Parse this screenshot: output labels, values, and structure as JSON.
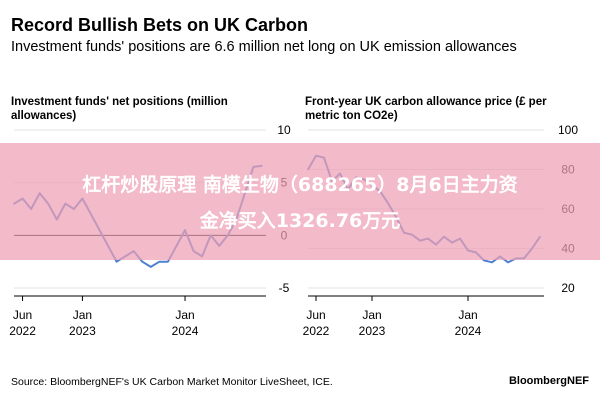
{
  "header": {
    "title": "Record Bullish Bets on UK Carbon",
    "subtitle": "Investment funds' positions are 6.6 million net long on UK emission allowances"
  },
  "colors": {
    "line": "#4f80cf",
    "zero_line": "#000000",
    "grid": "#e3e3e3",
    "banner": "#eea0b4"
  },
  "chart_data": [
    {
      "type": "line",
      "title": "Investment funds' net positions (million allowances)",
      "ylim": [
        -5,
        10
      ],
      "yticks": [
        "10",
        "5",
        "0",
        "-5"
      ],
      "ytick_values": [
        10,
        5,
        0,
        -5
      ],
      "xticks": [
        {
          "value": "2022-06",
          "label": "Jun",
          "sublabel": "2022"
        },
        {
          "value": "2023-01",
          "label": "Jan",
          "sublabel": "2023"
        },
        {
          "value": "2024-01",
          "label": "Jan",
          "sublabel": "2024"
        }
      ],
      "xlim": [
        "2022-05",
        "2024-10"
      ],
      "zero_line": true,
      "series": [
        {
          "x": [
            "2022-05",
            "2022-06",
            "2022-07",
            "2022-08",
            "2022-09",
            "2022-10",
            "2022-11",
            "2022-12",
            "2023-01",
            "2023-02",
            "2023-03",
            "2023-04",
            "2023-05",
            "2023-06",
            "2023-07",
            "2023-08",
            "2023-09",
            "2023-10",
            "2023-11",
            "2023-12",
            "2024-01",
            "2024-02",
            "2024-03",
            "2024-04",
            "2024-05",
            "2024-06",
            "2024-07",
            "2024-08",
            "2024-09",
            "2024-10"
          ],
          "values": [
            3.0,
            3.5,
            2.5,
            4.0,
            3.0,
            1.5,
            3.0,
            2.5,
            3.5,
            2.0,
            0.5,
            -1.0,
            -2.5,
            -2.0,
            -1.5,
            -2.5,
            -3.0,
            -2.5,
            -2.5,
            -1.0,
            0.5,
            -1.5,
            -2.0,
            0.0,
            -1.0,
            0.0,
            1.5,
            4.0,
            6.5,
            6.6
          ]
        }
      ]
    },
    {
      "type": "line",
      "title": "Front-year UK carbon allowance price (£ per metric ton CO2e)",
      "ylim": [
        20,
        100
      ],
      "yticks": [
        "100",
        "80",
        "60",
        "40",
        "20"
      ],
      "ytick_values": [
        100,
        80,
        60,
        40,
        20
      ],
      "xticks": [
        {
          "value": "2022-06",
          "label": "Jun",
          "sublabel": "2022"
        },
        {
          "value": "2023-01",
          "label": "Jan",
          "sublabel": "2023"
        },
        {
          "value": "2024-01",
          "label": "Jan",
          "sublabel": "2024"
        }
      ],
      "xlim": [
        "2022-05",
        "2024-10"
      ],
      "zero_line": false,
      "series": [
        {
          "x": [
            "2022-05",
            "2022-06",
            "2022-07",
            "2022-08",
            "2022-09",
            "2022-10",
            "2022-11",
            "2022-12",
            "2023-01",
            "2023-02",
            "2023-03",
            "2023-04",
            "2023-05",
            "2023-06",
            "2023-07",
            "2023-08",
            "2023-09",
            "2023-10",
            "2023-11",
            "2023-12",
            "2024-01",
            "2024-02",
            "2024-03",
            "2024-04",
            "2024-05",
            "2024-06",
            "2024-07",
            "2024-08",
            "2024-09",
            "2024-10"
          ],
          "values": [
            80,
            87,
            86,
            74,
            78,
            70,
            76,
            75,
            72,
            69,
            63,
            56,
            48,
            47,
            44,
            45,
            42,
            46,
            43,
            45,
            39,
            38,
            34,
            33,
            36,
            33,
            35,
            35,
            40,
            46
          ]
        }
      ]
    }
  ],
  "footer": {
    "source": "Source: BloombergNEF's UK Carbon Market Monitor LiveSheet, ICE.",
    "brand": "BloombergNEF"
  },
  "overlay": {
    "line1": "杠杆炒股原理 南模生物（688265）8月6日主力资",
    "line2": "金净买入1326.76万元"
  }
}
